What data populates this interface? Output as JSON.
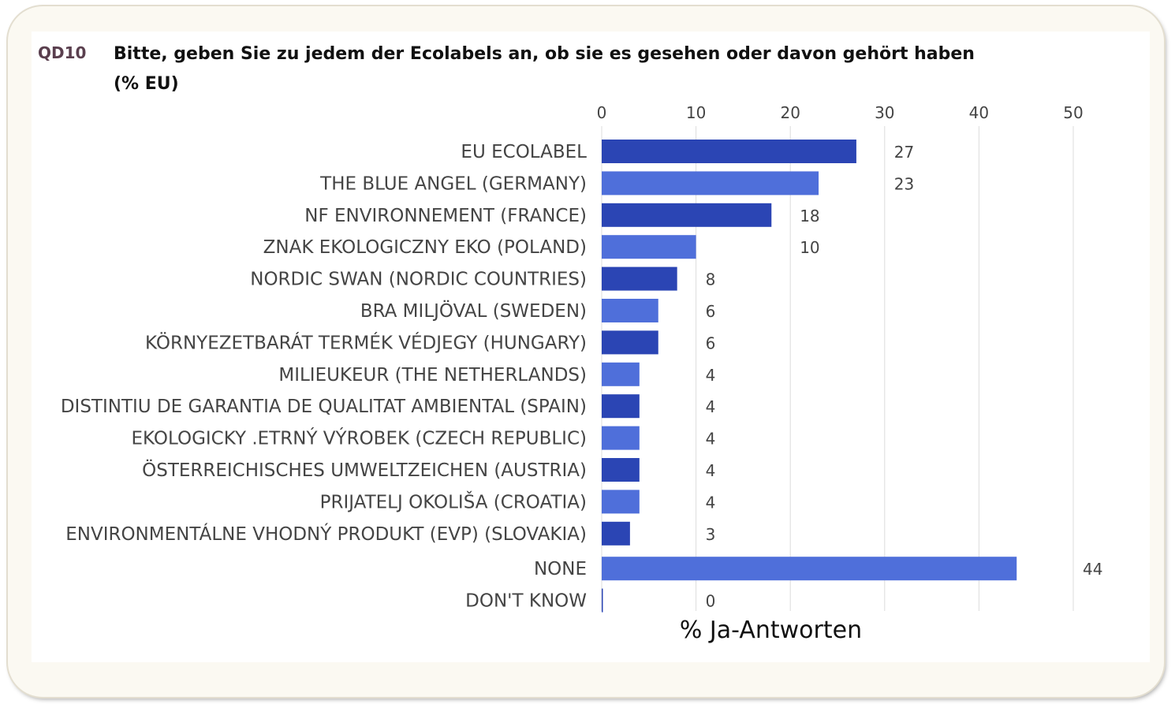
{
  "header": {
    "code": "QD10",
    "title_line1": "Bitte, geben Sie zu jedem der Ecolabels an, ob sie es gesehen oder davon gehört haben",
    "title_line2": "(% EU)"
  },
  "chart_data": {
    "type": "bar",
    "orientation": "horizontal",
    "categories": [
      "EU ECOLABEL",
      "THE BLUE ANGEL (GERMANY)",
      "NF ENVIRONNEMENT (FRANCE)",
      "ZNAK EKOLOGICZNY EKO (POLAND)",
      "NORDIC SWAN (NORDIC COUNTRIES)",
      "BRA MILJÖVAL (SWEDEN)",
      "KÖRNYEZETBARÁT TERMÉK VÉDJEGY (HUNGARY)",
      "MILIEUKEUR (THE NETHERLANDS)",
      "DISTINTIU DE GARANTIA DE QUALITAT AMBIENTAL (SPAIN)",
      "EKOLOGICKY .ETRNÝ VÝROBEK (CZECH REPUBLIC)",
      "ÖSTERREICHISCHES UMWELTZEICHEN (AUSTRIA)",
      "PRIJATELJ OKOLIŠA (CROATIA)",
      "ENVIRONMENTÁLNE VHODNÝ PRODUKT (EVP) (SLOVAKIA)",
      "NONE",
      "DON'T KNOW"
    ],
    "values": [
      27,
      23,
      18,
      10,
      8,
      6,
      6,
      4,
      4,
      4,
      4,
      4,
      3,
      44,
      0
    ],
    "xlabel": "% Ja-Antworten",
    "xlim": [
      0,
      50
    ],
    "xticks": [
      0,
      10,
      20,
      30,
      40,
      50
    ],
    "axis_position": "top",
    "grid": true,
    "colors": {
      "dark": "#2b45b4",
      "light": "#4f6fda",
      "grid": "#dcdcdc",
      "label": "#444444"
    }
  }
}
